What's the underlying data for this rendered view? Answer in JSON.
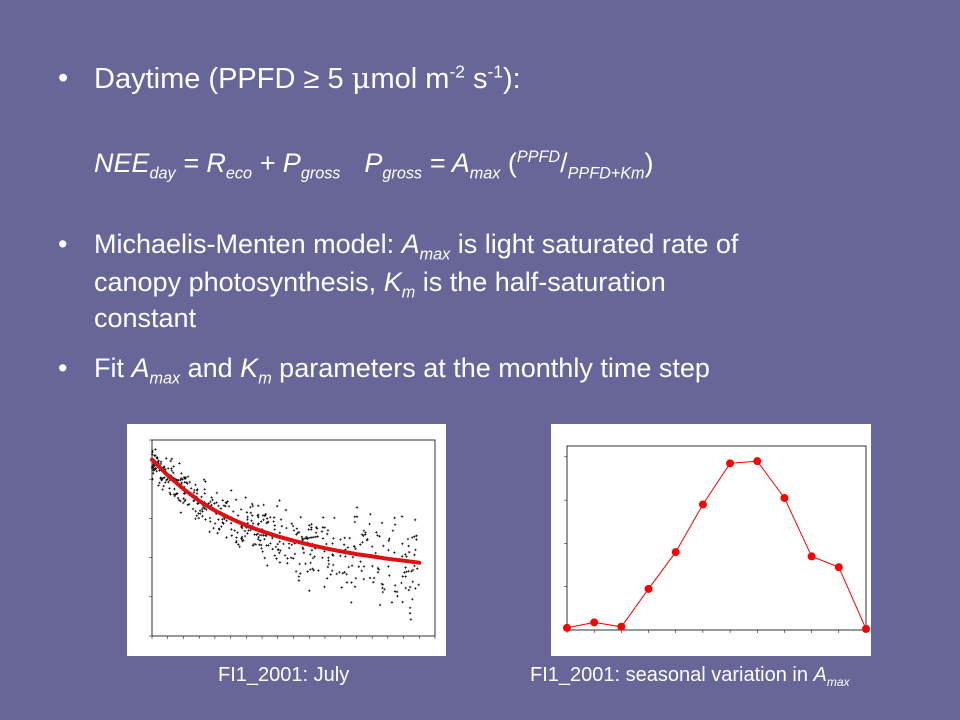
{
  "slide": {
    "bullet1": {
      "text_pre": "Daytime (PPFD ≥ 5 ",
      "mu": "μ",
      "text_mid": "mol m",
      "exp1": "-2",
      "text_s": " s",
      "exp2": "-1",
      "text_post": "):"
    },
    "equation": {
      "nee": "NEE",
      "nee_sub": "day",
      "eq1": " = R",
      "reco_sub": "eco",
      "plus": " + P",
      "pg_sub": "gross",
      "pg2": "P",
      "pg2_sub": "gross",
      "eq2": " = A",
      "amax_sub": "max",
      "open": " (",
      "frac_num": "PPFD",
      "slash": "/",
      "frac_den": "PPFD+Km",
      "close": ")"
    },
    "bullet2": {
      "l1a": "Michaelis-Menten model: ",
      "a": "A",
      "a_sub": "max",
      "l1b": " is light saturated rate of",
      "l2a": "canopy photosynthesis, ",
      "k": "K",
      "k_sub": "m",
      "l2b": " is the half-saturation",
      "l3": "constant"
    },
    "bullet3": {
      "pre": "Fit ",
      "a": "A",
      "a_sub": "max",
      "mid": " and ",
      "k": "K",
      "k_sub": "m",
      "post": " parameters at the monthly time step"
    },
    "bullet_glyph": "•"
  },
  "captions": {
    "left": "FI1_2001: July",
    "right_pre": "FI1_2001: seasonal variation in ",
    "right_a": "A",
    "right_sub": "max"
  },
  "chart_data": [
    {
      "type": "scatter",
      "title": "",
      "xlabel": "",
      "ylabel": "",
      "xlim": [
        0,
        1800
      ],
      "ylim": [
        -40,
        10
      ],
      "fit_curve": {
        "x": [
          0,
          100,
          200,
          300,
          400,
          500,
          600,
          700,
          800,
          900,
          1000,
          1100,
          1200,
          1300,
          1400,
          1500,
          1600,
          1700
        ],
        "y": [
          5,
          1,
          -2.5,
          -5.5,
          -8,
          -10,
          -11.8,
          -13.3,
          -14.6,
          -15.7,
          -16.7,
          -17.6,
          -18.4,
          -19.1,
          -19.7,
          -20.3,
          -20.8,
          -21.3
        ]
      },
      "colors": {
        "points": "#000000",
        "fit": "#dd1111"
      }
    },
    {
      "type": "line",
      "title": "",
      "xlabel": "",
      "ylabel": "",
      "x": [
        1,
        2,
        3,
        4,
        5,
        6,
        7,
        8,
        9,
        10,
        11,
        12
      ],
      "series": [
        {
          "values": [
            1,
            3.5,
            1.5,
            19,
            36,
            58,
            77,
            78,
            61,
            34,
            29,
            0.5
          ]
        }
      ],
      "xlim": [
        1,
        12
      ],
      "ylim": [
        0,
        85
      ],
      "colors": {
        "line": "#ff0000",
        "marker": "#ff0000"
      }
    }
  ]
}
